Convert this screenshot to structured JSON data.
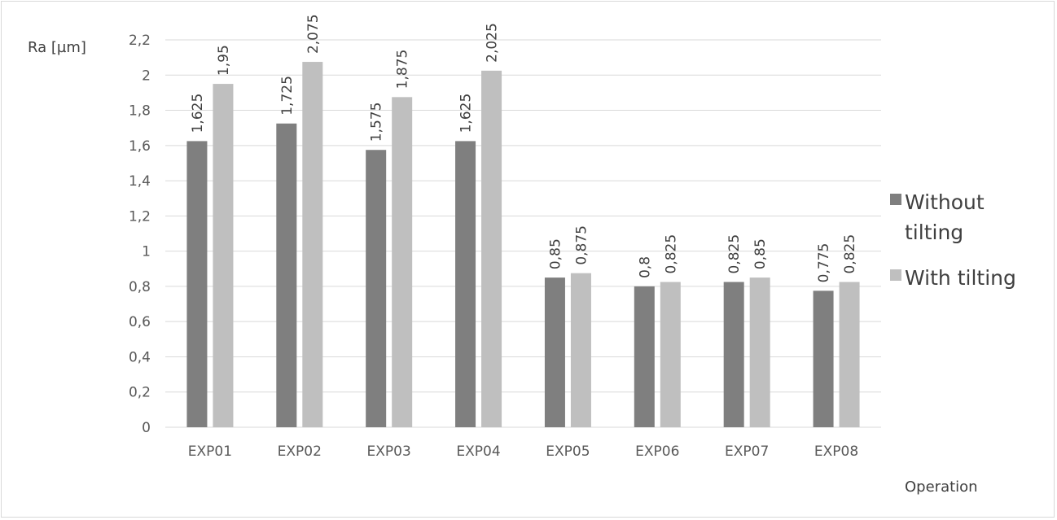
{
  "chart_data": {
    "type": "bar",
    "title": "",
    "ylabel": "Ra [µm]",
    "xlabel": "Operation",
    "categories": [
      "EXP01",
      "EXP02",
      "EXP03",
      "EXP04",
      "EXP05",
      "EXP06",
      "EXP07",
      "EXP08"
    ],
    "series": [
      {
        "name": "Without tilting",
        "name_lines": [
          "Without",
          "tilting"
        ],
        "color": "#7f7f7f",
        "values": [
          1.625,
          1.725,
          1.575,
          1.625,
          0.85,
          0.8,
          0.825,
          0.775
        ],
        "labels": [
          "1,625",
          "1,725",
          "1,575",
          "1,625",
          "0,85",
          "0,8",
          "0,825",
          "0,775"
        ]
      },
      {
        "name": "With tilting",
        "name_lines": [
          "With tilting"
        ],
        "color": "#bfbfbf",
        "values": [
          1.95,
          2.075,
          1.875,
          2.025,
          0.875,
          0.825,
          0.85,
          0.825
        ],
        "labels": [
          "1,95",
          "2,075",
          "1,875",
          "2,025",
          "0,875",
          "0,825",
          "0,85",
          "0,825"
        ]
      }
    ],
    "ylim": [
      0,
      2.2
    ],
    "yticks": [
      0,
      0.2,
      0.4,
      0.6,
      0.8,
      1,
      1.2,
      1.4,
      1.6,
      1.8,
      2,
      2.2
    ],
    "ytick_labels": [
      "0",
      "0,2",
      "0,4",
      "0,6",
      "0,8",
      "1",
      "1,2",
      "1,4",
      "1,6",
      "1,8",
      "2",
      "2,2"
    ],
    "grid": true,
    "legend_position": "right",
    "gridline_color": "#d9d9d9"
  }
}
